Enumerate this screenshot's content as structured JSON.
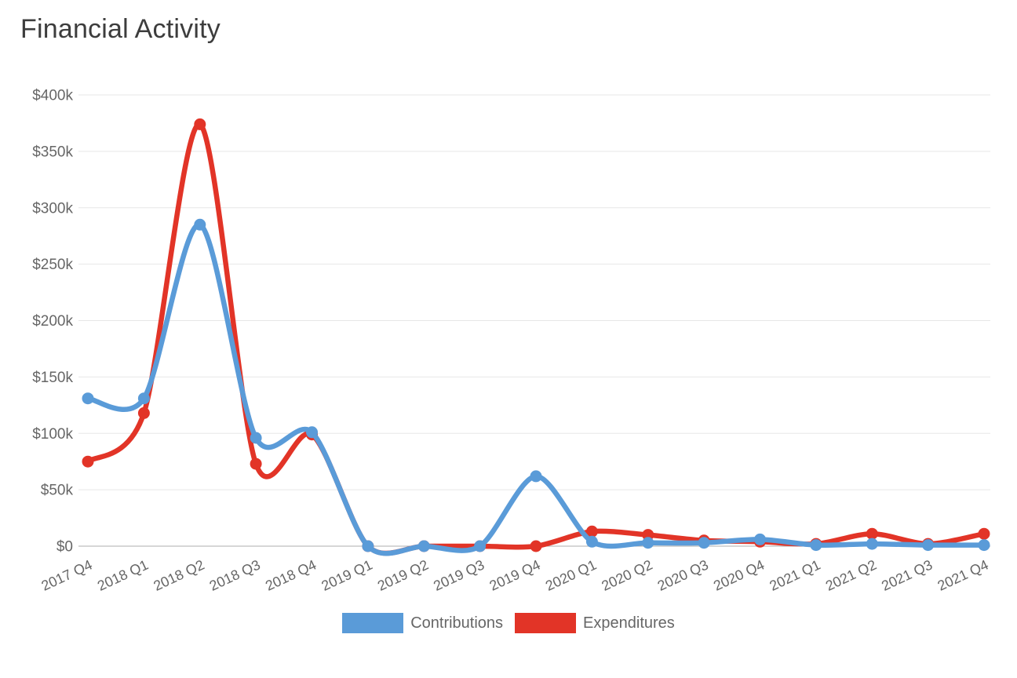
{
  "chart_data": {
    "type": "line",
    "title": "Financial Activity",
    "unit": "USD thousands",
    "categories": [
      "2017 Q4",
      "2018 Q1",
      "2018 Q2",
      "2018 Q3",
      "2018 Q4",
      "2019 Q1",
      "2019 Q2",
      "2019 Q3",
      "2019 Q4",
      "2020 Q1",
      "2020 Q2",
      "2020 Q3",
      "2020 Q4",
      "2021 Q1",
      "2021 Q2",
      "2021 Q3",
      "2021 Q4"
    ],
    "series": [
      {
        "name": "Contributions",
        "color": "#5A9BD8",
        "values": [
          131,
          131,
          285,
          96,
          101,
          0,
          0,
          0,
          62,
          4,
          3,
          3,
          6,
          1,
          2,
          1,
          1
        ]
      },
      {
        "name": "Expenditures",
        "color": "#E23427",
        "values": [
          75,
          118,
          374,
          73,
          99,
          0,
          0,
          0,
          0,
          13,
          10,
          5,
          4,
          2,
          11,
          2,
          11
        ]
      }
    ],
    "y_axis": {
      "min": 0,
      "max": 400,
      "tick_step": 50,
      "tick_labels": [
        "$0",
        "$50k",
        "$100k",
        "$150k",
        "$200k",
        "$250k",
        "$300k",
        "$350k",
        "$400k"
      ]
    },
    "x_axis": {
      "label_rotation_deg": -25
    },
    "grid": "horizontal",
    "legend_position": "bottom",
    "line_smoothing": "catmull-rom"
  },
  "colors": {
    "grid_line": "#E7E7E7",
    "zero_line": "#ACACAC",
    "axis_text": "#666666",
    "title_text": "#3D3D3D",
    "background": "#FFFFFF"
  }
}
